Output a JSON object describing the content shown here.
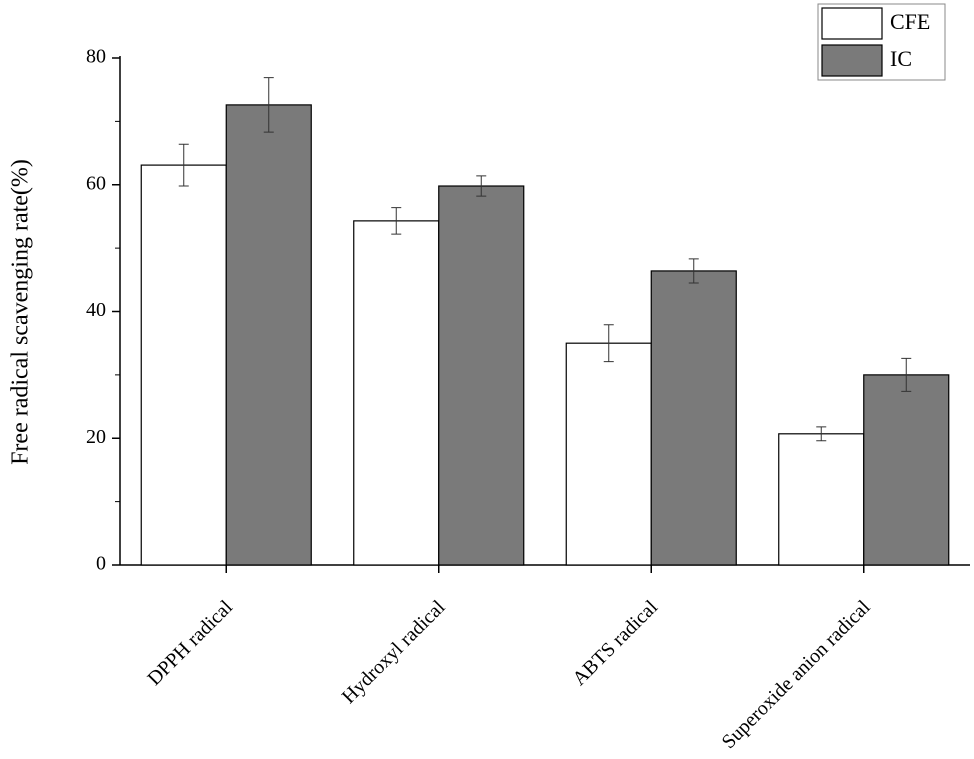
{
  "chart_data": {
    "type": "bar",
    "y_label": "Free radical scavenging rate(%)",
    "categories": [
      "DPPH radical",
      "Hydroxyl radical",
      "ABTS radical",
      "Superoxide anion radical"
    ],
    "series": [
      {
        "name": "CFE",
        "color": "#ffffff",
        "values": [
          63.1,
          54.3,
          35.0,
          20.7
        ],
        "errors": [
          3.3,
          2.1,
          2.9,
          1.1
        ]
      },
      {
        "name": "IC",
        "color": "#7a7a7a",
        "values": [
          72.6,
          59.8,
          46.4,
          30.0
        ],
        "errors": [
          4.3,
          1.6,
          1.9,
          2.6
        ]
      }
    ],
    "ylim": [
      0,
      80
    ],
    "yticks": [
      0,
      20,
      40,
      60,
      80
    ],
    "legend": "upper right"
  }
}
